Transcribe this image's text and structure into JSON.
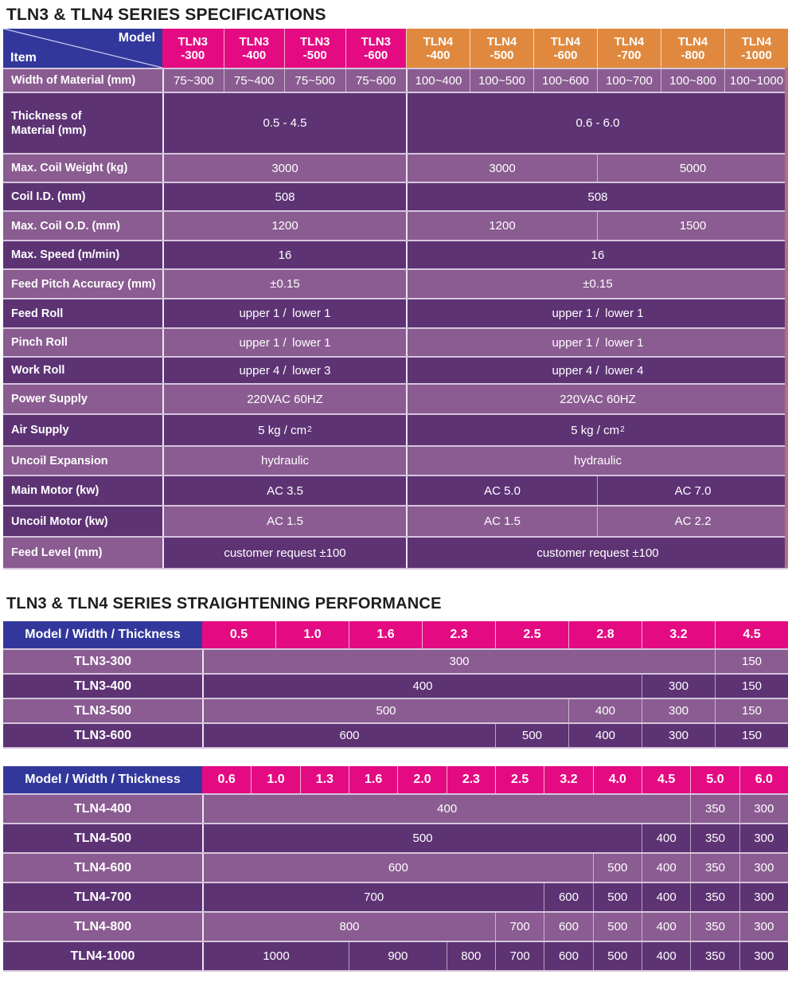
{
  "titles": {
    "spec": "TLN3 & TLN4 SERIES SPECIFICATIONS",
    "perf": "TLN3 & TLN4 SERIES STRAIGHTENING PERFORMANCE"
  },
  "colors": {
    "header_blue": "#32389b",
    "tln3_pink": "#e40b82",
    "tln4_orange": "#e0893e",
    "row_light": "#8a5c91",
    "row_dark": "#5d3374",
    "edge_strip": "#b56d82"
  },
  "spec_table": {
    "corner": {
      "top": "Model",
      "bottom": "Item"
    },
    "model_headers": [
      {
        "series": "tln3",
        "line1": "TLN3",
        "line2": "-300"
      },
      {
        "series": "tln3",
        "line1": "TLN3",
        "line2": "-400"
      },
      {
        "series": "tln3",
        "line1": "TLN3",
        "line2": "-500"
      },
      {
        "series": "tln3",
        "line1": "TLN3",
        "line2": "-600"
      },
      {
        "series": "tln4",
        "line1": "TLN4",
        "line2": "-400"
      },
      {
        "series": "tln4",
        "line1": "TLN4",
        "line2": "-500"
      },
      {
        "series": "tln4",
        "line1": "TLN4",
        "line2": "-600"
      },
      {
        "series": "tln4",
        "line1": "TLN4",
        "line2": "-700"
      },
      {
        "series": "tln4",
        "line1": "TLN4",
        "line2": "-800"
      },
      {
        "series": "tln4",
        "line1": "TLN4",
        "line2": "-1000"
      }
    ],
    "rows": [
      {
        "key": "width-of-material",
        "label": "Width of Material (mm)",
        "shade": "light",
        "cells": [
          {
            "span": 1,
            "text": "75~300"
          },
          {
            "span": 1,
            "text": "75~400"
          },
          {
            "span": 1,
            "text": "75~500"
          },
          {
            "span": 1,
            "text": "75~600"
          },
          {
            "span": 1,
            "text": "100~400"
          },
          {
            "span": 1,
            "text": "100~500"
          },
          {
            "span": 1,
            "text": "100~600"
          },
          {
            "span": 1,
            "text": "100~700"
          },
          {
            "span": 1,
            "text": "100~800"
          },
          {
            "span": 1,
            "text": "100~1000"
          }
        ]
      },
      {
        "key": "thickness",
        "label": "Thickness of\nMaterial (mm)",
        "shade": "dark",
        "cells": [
          {
            "span": 4,
            "text": "0.5 - 4.5"
          },
          {
            "span": 6,
            "text": "0.6 - 6.0"
          }
        ]
      },
      {
        "key": "max-coil-weight",
        "label": "Max. Coil Weight (kg)",
        "shade": "light",
        "cells": [
          {
            "span": 4,
            "text": "3000"
          },
          {
            "span": 3,
            "text": "3000"
          },
          {
            "span": 3,
            "text": "5000"
          }
        ]
      },
      {
        "key": "coil-id",
        "label": "Coil I.D. (mm)",
        "shade": "dark",
        "cells": [
          {
            "span": 4,
            "text": "508"
          },
          {
            "span": 6,
            "text": "508"
          }
        ]
      },
      {
        "key": "max-coil-od",
        "label": "Max. Coil O.D. (mm)",
        "shade": "light",
        "cells": [
          {
            "span": 4,
            "text": "1200"
          },
          {
            "span": 3,
            "text": "1200"
          },
          {
            "span": 3,
            "text": "1500"
          }
        ]
      },
      {
        "key": "max-speed",
        "label": "Max. Speed (m/min)",
        "shade": "dark",
        "cells": [
          {
            "span": 4,
            "text": "16"
          },
          {
            "span": 6,
            "text": "16"
          }
        ]
      },
      {
        "key": "feed-pitch-accuracy",
        "label": "Feed Pitch Accuracy (mm)",
        "shade": "light",
        "cells": [
          {
            "span": 4,
            "text": "±0.15"
          },
          {
            "span": 6,
            "text": "±0.15"
          }
        ]
      },
      {
        "key": "feed-roll",
        "label": "Feed Roll",
        "shade": "dark",
        "cells": [
          {
            "span": 4,
            "text": "upper 1 / lower 1"
          },
          {
            "span": 6,
            "text": "upper 1 / lower 1"
          }
        ]
      },
      {
        "key": "pinch-roll",
        "label": "Pinch Roll",
        "shade": "light",
        "cells": [
          {
            "span": 4,
            "text": "upper 1 / lower 1"
          },
          {
            "span": 6,
            "text": "upper 1 / lower 1"
          }
        ]
      },
      {
        "key": "work-roll",
        "label": "Work Roll",
        "shade": "dark",
        "cells": [
          {
            "span": 4,
            "text": "upper 4 / lower 3"
          },
          {
            "span": 6,
            "text": "upper 4 / lower 4"
          }
        ]
      },
      {
        "key": "power-supply",
        "label": "Power Supply",
        "shade": "light",
        "cells": [
          {
            "span": 4,
            "text": "220VAC 60HZ"
          },
          {
            "span": 6,
            "text": "220VAC 60HZ"
          }
        ]
      },
      {
        "key": "air-supply",
        "label": "Air Supply",
        "shade": "dark",
        "cells": [
          {
            "span": 4,
            "text": "5 kg / cm",
            "sup": "2"
          },
          {
            "span": 6,
            "text": "5 kg / cm",
            "sup": "2"
          }
        ]
      },
      {
        "key": "uncoil-expansion",
        "label": "Uncoil Expansion",
        "shade": "light",
        "cells": [
          {
            "span": 4,
            "text": "hydraulic"
          },
          {
            "span": 6,
            "text": "hydraulic"
          }
        ]
      },
      {
        "key": "main-motor",
        "label": "Main Motor (kw)",
        "shade": "dark",
        "cells": [
          {
            "span": 4,
            "text": "AC 3.5"
          },
          {
            "span": 3,
            "text": "AC 5.0"
          },
          {
            "span": 3,
            "text": "AC 7.0"
          }
        ]
      },
      {
        "key": "uncoil-motor",
        "label": "Uncoil Motor (kw)",
        "shade": "light",
        "label_shade": "dark",
        "cells": [
          {
            "span": 4,
            "text": "AC 1.5"
          },
          {
            "span": 3,
            "text": "AC 1.5"
          },
          {
            "span": 3,
            "text": "AC 2.2"
          }
        ]
      },
      {
        "key": "feed-level",
        "label": "Feed Level (mm)",
        "shade": "dark",
        "label_shade": "light",
        "cells": [
          {
            "span": 4,
            "text": "customer request ±100"
          },
          {
            "span": 6,
            "text": "customer request ±100"
          }
        ]
      }
    ]
  },
  "perf_tables": [
    {
      "id": "tln3",
      "header_label": "Model / Width / Thickness",
      "thickness_columns": [
        "0.5",
        "1.0",
        "1.6",
        "2.3",
        "2.5",
        "2.8",
        "3.2",
        "4.5"
      ],
      "rows": [
        {
          "model": "TLN3-300",
          "shade": "light",
          "cells": [
            {
              "span": 7,
              "text": "300"
            },
            {
              "span": 1,
              "text": "150"
            }
          ]
        },
        {
          "model": "TLN3-400",
          "shade": "dark",
          "cells": [
            {
              "span": 6,
              "text": "400"
            },
            {
              "span": 1,
              "text": "300"
            },
            {
              "span": 1,
              "text": "150"
            }
          ]
        },
        {
          "model": "TLN3-500",
          "shade": "light",
          "cells": [
            {
              "span": 5,
              "text": "500"
            },
            {
              "span": 1,
              "text": "400"
            },
            {
              "span": 1,
              "text": "300"
            },
            {
              "span": 1,
              "text": "150"
            }
          ]
        },
        {
          "model": "TLN3-600",
          "shade": "dark",
          "cells": [
            {
              "span": 4,
              "text": "600"
            },
            {
              "span": 1,
              "text": "500"
            },
            {
              "span": 1,
              "text": "400"
            },
            {
              "span": 1,
              "text": "300"
            },
            {
              "span": 1,
              "text": "150"
            }
          ]
        }
      ]
    },
    {
      "id": "tln4",
      "header_label": "Model / Width / Thickness",
      "thickness_columns": [
        "0.6",
        "1.0",
        "1.3",
        "1.6",
        "2.0",
        "2.3",
        "2.5",
        "3.2",
        "4.0",
        "4.5",
        "5.0",
        "6.0"
      ],
      "rows": [
        {
          "model": "TLN4-400",
          "shade": "light",
          "cells": [
            {
              "span": 10,
              "text": "400"
            },
            {
              "span": 1,
              "text": "350"
            },
            {
              "span": 1,
              "text": "300"
            }
          ]
        },
        {
          "model": "TLN4-500",
          "shade": "dark",
          "cells": [
            {
              "span": 9,
              "text": "500"
            },
            {
              "span": 1,
              "text": "400"
            },
            {
              "span": 1,
              "text": "350"
            },
            {
              "span": 1,
              "text": "300"
            }
          ]
        },
        {
          "model": "TLN4-600",
          "shade": "light",
          "cells": [
            {
              "span": 8,
              "text": "600"
            },
            {
              "span": 1,
              "text": "500"
            },
            {
              "span": 1,
              "text": "400"
            },
            {
              "span": 1,
              "text": "350"
            },
            {
              "span": 1,
              "text": "300"
            }
          ]
        },
        {
          "model": "TLN4-700",
          "shade": "dark",
          "cells": [
            {
              "span": 7,
              "text": "700"
            },
            {
              "span": 1,
              "text": "600"
            },
            {
              "span": 1,
              "text": "500"
            },
            {
              "span": 1,
              "text": "400"
            },
            {
              "span": 1,
              "text": "350"
            },
            {
              "span": 1,
              "text": "300"
            }
          ]
        },
        {
          "model": "TLN4-800",
          "shade": "light",
          "cells": [
            {
              "span": 6,
              "text": "800"
            },
            {
              "span": 1,
              "text": "700"
            },
            {
              "span": 1,
              "text": "600"
            },
            {
              "span": 1,
              "text": "500"
            },
            {
              "span": 1,
              "text": "400"
            },
            {
              "span": 1,
              "text": "350"
            },
            {
              "span": 1,
              "text": "300"
            }
          ]
        },
        {
          "model": "TLN4-1000",
          "shade": "dark",
          "cells": [
            {
              "span": 3,
              "text": "1000"
            },
            {
              "span": 2,
              "text": "900"
            },
            {
              "span": 1,
              "text": "800"
            },
            {
              "span": 1,
              "text": "700"
            },
            {
              "span": 1,
              "text": "600"
            },
            {
              "span": 1,
              "text": "500"
            },
            {
              "span": 1,
              "text": "400"
            },
            {
              "span": 1,
              "text": "350"
            },
            {
              "span": 1,
              "text": "300"
            }
          ]
        }
      ]
    }
  ]
}
